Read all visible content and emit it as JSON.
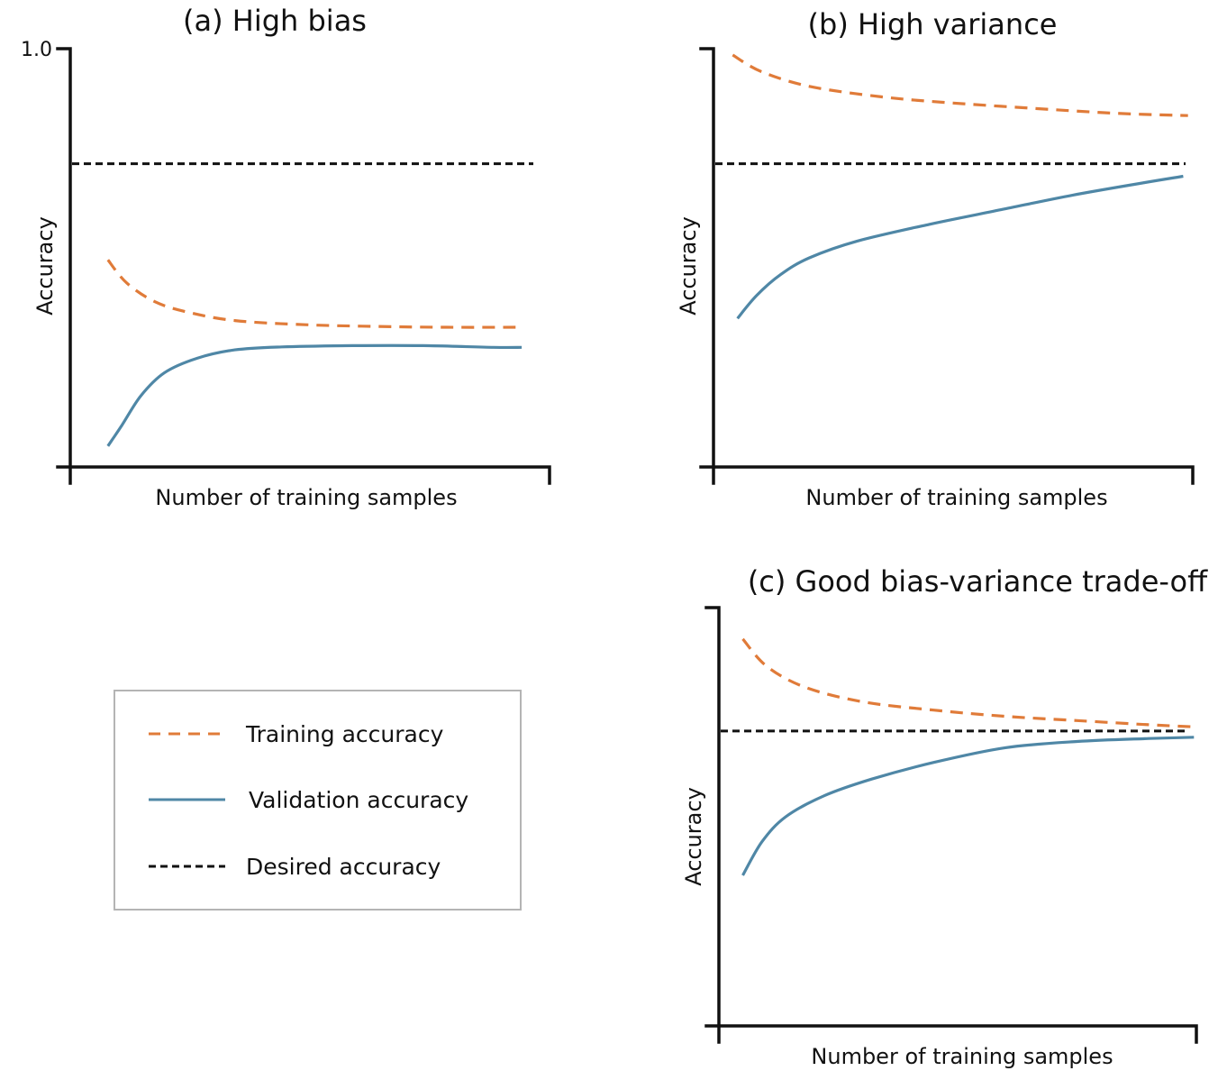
{
  "colors": {
    "training": "#e07b39",
    "validation": "#4f87a6",
    "desired": "#111111"
  },
  "legend": [
    {
      "key": "training",
      "label": "Training accuracy",
      "style": "dashed"
    },
    {
      "key": "validation",
      "label": "Validation accuracy",
      "style": "solid"
    },
    {
      "key": "desired",
      "label": "Desired accuracy",
      "style": "dashed"
    }
  ],
  "chart_data": [
    {
      "type": "line",
      "title": "(a) High bias",
      "xlabel": "Number of training samples",
      "ylabel": "Accuracy",
      "yticks": [
        {
          "value": 1.0,
          "label": "1.0"
        }
      ],
      "ylim": [
        0,
        1.0
      ],
      "xlim": [
        0,
        1
      ],
      "desired": 0.725,
      "series": [
        {
          "key": "training",
          "style": "dashed",
          "x": [
            0.08,
            0.12,
            0.18,
            0.25,
            0.35,
            0.5,
            0.65,
            0.8,
            0.96
          ],
          "y": [
            0.495,
            0.44,
            0.395,
            0.37,
            0.35,
            0.34,
            0.336,
            0.334,
            0.334
          ]
        },
        {
          "key": "validation",
          "style": "solid",
          "x": [
            0.08,
            0.11,
            0.15,
            0.2,
            0.27,
            0.35,
            0.45,
            0.6,
            0.75,
            0.9,
            0.96
          ],
          "y": [
            0.05,
            0.1,
            0.17,
            0.225,
            0.26,
            0.28,
            0.287,
            0.29,
            0.29,
            0.286,
            0.286
          ]
        }
      ]
    },
    {
      "type": "line",
      "title": "(b) High variance",
      "xlabel": "Number of training samples",
      "ylabel": "Accuracy",
      "yticks": [],
      "ylim": [
        0,
        1.0
      ],
      "xlim": [
        0,
        1
      ],
      "desired": 0.725,
      "series": [
        {
          "key": "training",
          "style": "dashed",
          "x": [
            0.04,
            0.1,
            0.2,
            0.35,
            0.5,
            0.7,
            0.85,
            0.99
          ],
          "y": [
            0.985,
            0.945,
            0.91,
            0.885,
            0.87,
            0.855,
            0.845,
            0.84
          ]
        },
        {
          "key": "validation",
          "style": "solid",
          "x": [
            0.05,
            0.09,
            0.14,
            0.2,
            0.3,
            0.45,
            0.6,
            0.75,
            0.9,
            0.98
          ],
          "y": [
            0.355,
            0.41,
            0.46,
            0.5,
            0.54,
            0.58,
            0.615,
            0.65,
            0.68,
            0.695
          ]
        }
      ]
    },
    {
      "type": "line",
      "title": "(c) Good bias-variance trade-off",
      "xlabel": "Number of training samples",
      "ylabel": "Accuracy",
      "yticks": [],
      "ylim": [
        0,
        1.0
      ],
      "xlim": [
        0,
        1
      ],
      "desired": 0.705,
      "series": [
        {
          "key": "training",
          "style": "dashed",
          "x": [
            0.05,
            0.1,
            0.18,
            0.3,
            0.45,
            0.6,
            0.75,
            0.9,
            0.995
          ],
          "y": [
            0.925,
            0.86,
            0.81,
            0.775,
            0.755,
            0.74,
            0.73,
            0.72,
            0.715
          ]
        },
        {
          "key": "validation",
          "style": "solid",
          "x": [
            0.05,
            0.09,
            0.14,
            0.22,
            0.32,
            0.45,
            0.6,
            0.75,
            0.9,
            0.995
          ],
          "y": [
            0.36,
            0.44,
            0.5,
            0.55,
            0.59,
            0.63,
            0.665,
            0.68,
            0.687,
            0.69
          ]
        }
      ]
    }
  ]
}
